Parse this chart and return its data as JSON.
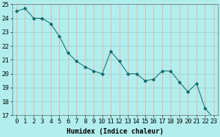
{
  "x": [
    0,
    1,
    2,
    3,
    4,
    5,
    6,
    7,
    8,
    9,
    10,
    11,
    12,
    13,
    14,
    15,
    16,
    17,
    18,
    19,
    20,
    21,
    22,
    23
  ],
  "y": [
    24.5,
    24.7,
    24.0,
    24.0,
    23.6,
    22.7,
    21.5,
    20.9,
    20.5,
    20.2,
    20.0,
    21.6,
    20.9,
    20.0,
    20.0,
    19.5,
    19.6,
    20.2,
    20.2,
    19.4,
    18.7,
    19.3,
    17.5,
    16.8
  ],
  "xlabel": "Humidex (Indice chaleur)",
  "ylim": [
    17,
    25
  ],
  "xlim": [
    -0.5,
    23.5
  ],
  "yticks": [
    17,
    18,
    19,
    20,
    21,
    22,
    23,
    24,
    25
  ],
  "xticks": [
    0,
    1,
    2,
    3,
    4,
    5,
    6,
    7,
    8,
    9,
    10,
    11,
    12,
    13,
    14,
    15,
    16,
    17,
    18,
    19,
    20,
    21,
    22,
    23
  ],
  "line_color": "#1a6b6b",
  "marker_color": "#1a6b6b",
  "bg_color": "#b2eeee",
  "plot_bg_color": "#b2eeee",
  "grid_color_h": "#88cccc",
  "grid_color_v": "#ff9999",
  "xlabel_fontsize": 7,
  "tick_fontsize": 6.5
}
